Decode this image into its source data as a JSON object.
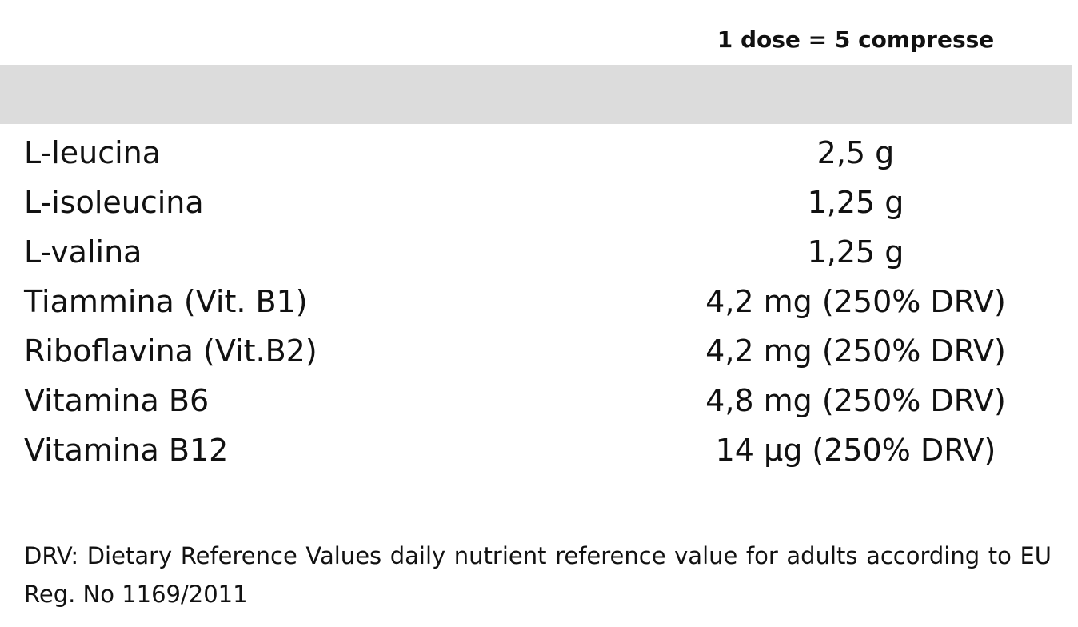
{
  "table": {
    "dose_header": "1 dose = 5 compresse",
    "rows": [
      {
        "name": "L-leucina",
        "value": "2,5 g"
      },
      {
        "name": "L-isoleucina",
        "value": "1,25 g"
      },
      {
        "name": "L-valina",
        "value": "1,25 g"
      },
      {
        "name": "Tiammina (Vit. B1)",
        "value": "4,2 mg (250% DRV)"
      },
      {
        "name": "Riboflavina (Vit.B2)",
        "value": "4,2 mg (250% DRV)"
      },
      {
        "name": "Vitamina B6",
        "value": "4,8 mg (250% DRV)"
      },
      {
        "name": "Vitamina B12",
        "value": "14 µg (250% DRV)"
      }
    ]
  },
  "footnote": "DRV: Dietary Reference Values daily nutrient reference value for adults according to EU Reg. No 1169/2011",
  "colors": {
    "band": "#dcdcdc",
    "text": "#111111",
    "background": "#ffffff"
  }
}
